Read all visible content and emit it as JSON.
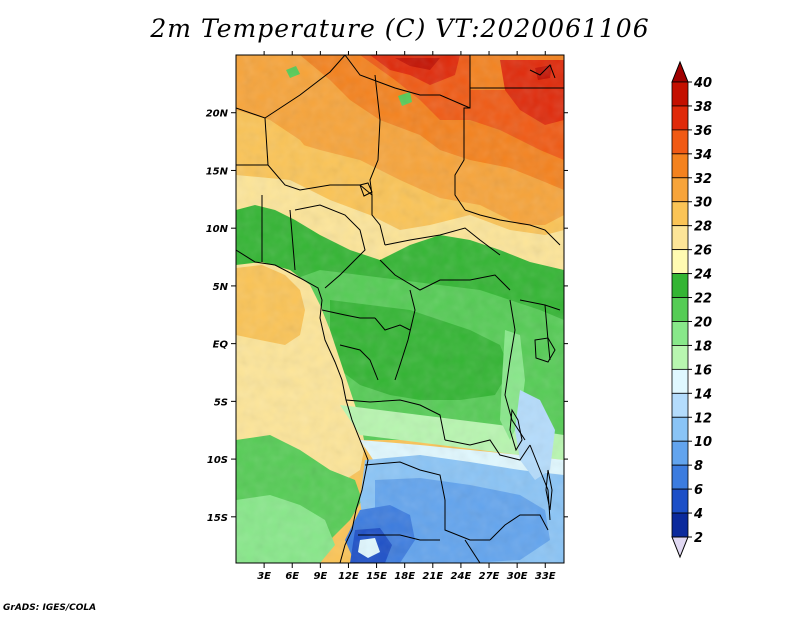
{
  "title": "2m Temperature (C) VT:2020061106",
  "credit": "GrADS: IGES/COLA",
  "map": {
    "lat_range": [
      -19,
      25
    ],
    "lon_range": [
      0,
      35
    ],
    "lat_ticks": [
      "20N",
      "15N",
      "10N",
      "5N",
      "EQ",
      "5S",
      "10S",
      "15S"
    ],
    "lat_values": [
      20,
      15,
      10,
      5,
      0,
      -5,
      -10,
      -15
    ],
    "lon_ticks": [
      "3E",
      "6E",
      "9E",
      "12E",
      "15E",
      "18E",
      "21E",
      "24E",
      "27E",
      "30E",
      "33E"
    ],
    "lon_values": [
      3,
      6,
      9,
      12,
      15,
      18,
      21,
      24,
      27,
      30,
      33
    ]
  },
  "colorbar": {
    "labels": [
      "40",
      "38",
      "36",
      "34",
      "32",
      "30",
      "28",
      "26",
      "24",
      "22",
      "20",
      "18",
      "16",
      "14",
      "12",
      "10",
      "8",
      "6",
      "4",
      "2"
    ],
    "colors": [
      "#a00000",
      "#c41000",
      "#e02a0a",
      "#f05a14",
      "#f4821e",
      "#f7a43a",
      "#fbc456",
      "#fde598",
      "#fffbb2",
      "#33b533",
      "#55cc55",
      "#88e88a",
      "#b8f6b0",
      "#e0f8ff",
      "#b4dcfc",
      "#8ac4f6",
      "#62a4ee",
      "#3c7cdf",
      "#1c4fc7",
      "#0b2a9c",
      "#08106e"
    ],
    "under_color": "#e0d8f2",
    "over_color": "#a00000"
  }
}
